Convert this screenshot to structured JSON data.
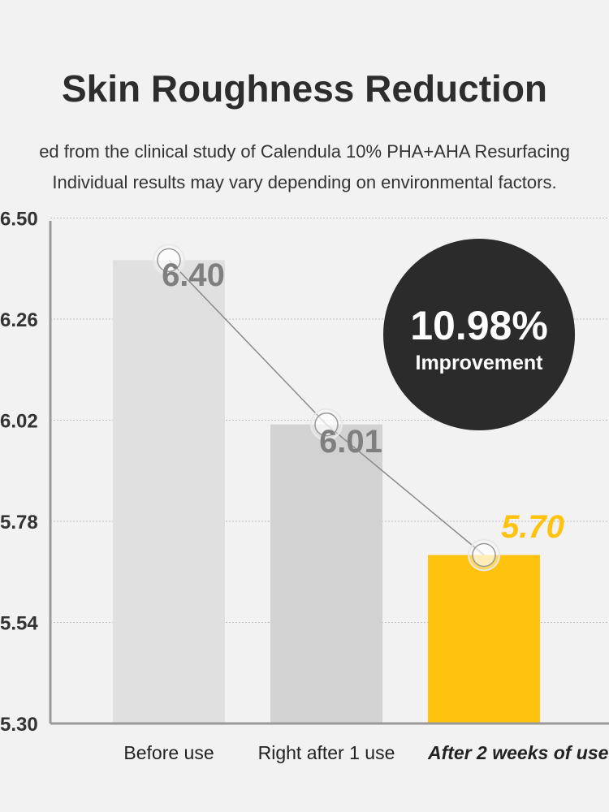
{
  "title": "Skin Roughness Reduction",
  "subtitle_line1": "ed from the clinical study of Calendula 10% PHA+AHA Resurfacing",
  "subtitle_line2": "Individual results may vary depending on environmental factors.",
  "badge": {
    "value": "10.98%",
    "label": "Improvement"
  },
  "chart_data": {
    "type": "bar",
    "categories": [
      "Before use",
      "Right after 1 use",
      "After 2 weeks of use"
    ],
    "values": [
      6.4,
      6.01,
      5.7
    ],
    "value_labels": [
      "6.40",
      "6.01",
      "5.70"
    ],
    "ylim": [
      5.3,
      6.74
    ],
    "yticks": [
      "5.30",
      "5.54",
      "5.78",
      "6.02",
      "6.26",
      "6.50"
    ],
    "grid": true,
    "line_overlay": true,
    "colors": {
      "bars": [
        "#e0e0e0",
        "#d2d2d2",
        "#ffc20e"
      ],
      "labels": [
        "#7f7f7f",
        "#7f7f7f",
        "#ffc20e"
      ],
      "axis": "#9a9a9a",
      "grid": "#bdbdbd",
      "badge": "#2b2b2b"
    },
    "highlight_index": 2
  }
}
